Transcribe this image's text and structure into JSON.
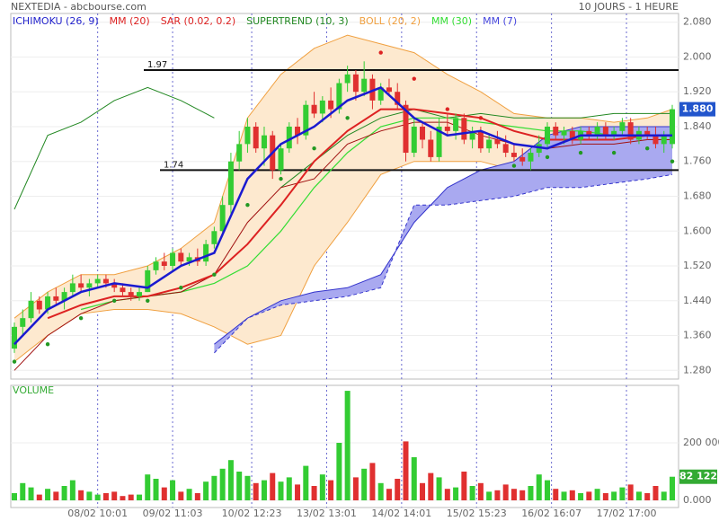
{
  "chart_data": [
    {
      "type": "candlestick",
      "title": "NEXTEDIA - abcbourse.com",
      "subtitle": "10 JOURS - 1 HEURE",
      "legend": [
        {
          "label": "ICHIMOKU (26, 9)",
          "color": "#2222cc"
        },
        {
          "label": "MM (20)",
          "color": "#dd2222"
        },
        {
          "label": "SAR (0.02, 0.2)",
          "color": "#dd2222"
        },
        {
          "label": "SUPERTREND (10, 3)",
          "color": "#228822"
        },
        {
          "label": "BOLL (20, 2)",
          "color": "#f0a040"
        },
        {
          "label": "MM (30)",
          "color": "#33dd33"
        },
        {
          "label": "MM (7)",
          "color": "#4444dd"
        }
      ],
      "ylim": [
        1.26,
        2.1
      ],
      "yticks": [
        {
          "value": 1.28,
          "label": "1.280"
        },
        {
          "value": 1.36,
          "label": "1.360"
        },
        {
          "value": 1.44,
          "label": "1.440"
        },
        {
          "value": 1.52,
          "label": "1.520"
        },
        {
          "value": 1.6,
          "label": "1.600"
        },
        {
          "value": 1.68,
          "label": "1.680"
        },
        {
          "value": 1.76,
          "label": "1.760"
        },
        {
          "value": 1.84,
          "label": "1.840"
        },
        {
          "value": 1.92,
          "label": "1.920"
        },
        {
          "value": 2.0,
          "label": "2.000"
        },
        {
          "value": 2.08,
          "label": "2.080"
        }
      ],
      "xticks": [
        {
          "value": 10,
          "label": "08/02 10:01"
        },
        {
          "value": 19,
          "label": "09/02 11:03"
        },
        {
          "value": 28.5,
          "label": "10/02 12:23"
        },
        {
          "value": 37.5,
          "label": "13/02 13:01"
        },
        {
          "value": 46.5,
          "label": "14/02 14:01"
        },
        {
          "value": 55.5,
          "label": "15/02 15:23"
        },
        {
          "value": 64.5,
          "label": "16/02 16:07"
        },
        {
          "value": 73.5,
          "label": "17/02 17:00"
        }
      ],
      "up_color": "#33cc33",
      "down_color": "#e03030",
      "ohlc": [
        [
          1.33,
          1.39,
          1.32,
          1.38
        ],
        [
          1.38,
          1.42,
          1.36,
          1.4
        ],
        [
          1.4,
          1.46,
          1.39,
          1.44
        ],
        [
          1.44,
          1.45,
          1.41,
          1.42
        ],
        [
          1.42,
          1.46,
          1.41,
          1.45
        ],
        [
          1.45,
          1.47,
          1.43,
          1.44
        ],
        [
          1.44,
          1.47,
          1.42,
          1.46
        ],
        [
          1.46,
          1.5,
          1.45,
          1.48
        ],
        [
          1.48,
          1.5,
          1.46,
          1.47
        ],
        [
          1.47,
          1.49,
          1.45,
          1.48
        ],
        [
          1.48,
          1.5,
          1.47,
          1.49
        ],
        [
          1.49,
          1.5,
          1.47,
          1.48
        ],
        [
          1.48,
          1.49,
          1.46,
          1.47
        ],
        [
          1.47,
          1.48,
          1.45,
          1.46
        ],
        [
          1.46,
          1.47,
          1.44,
          1.45
        ],
        [
          1.45,
          1.47,
          1.44,
          1.46
        ],
        [
          1.46,
          1.52,
          1.46,
          1.51
        ],
        [
          1.51,
          1.54,
          1.5,
          1.53
        ],
        [
          1.53,
          1.55,
          1.51,
          1.52
        ],
        [
          1.52,
          1.56,
          1.51,
          1.55
        ],
        [
          1.55,
          1.56,
          1.52,
          1.53
        ],
        [
          1.53,
          1.55,
          1.52,
          1.54
        ],
        [
          1.54,
          1.56,
          1.52,
          1.53
        ],
        [
          1.53,
          1.58,
          1.52,
          1.57
        ],
        [
          1.57,
          1.61,
          1.56,
          1.6
        ],
        [
          1.6,
          1.68,
          1.59,
          1.66
        ],
        [
          1.66,
          1.78,
          1.64,
          1.76
        ],
        [
          1.76,
          1.83,
          1.74,
          1.8
        ],
        [
          1.8,
          1.86,
          1.78,
          1.84
        ],
        [
          1.84,
          1.85,
          1.78,
          1.79
        ],
        [
          1.79,
          1.84,
          1.75,
          1.82
        ],
        [
          1.82,
          1.83,
          1.72,
          1.74
        ],
        [
          1.74,
          1.8,
          1.73,
          1.79
        ],
        [
          1.79,
          1.85,
          1.78,
          1.84
        ],
        [
          1.84,
          1.86,
          1.8,
          1.82
        ],
        [
          1.82,
          1.9,
          1.81,
          1.89
        ],
        [
          1.89,
          1.92,
          1.86,
          1.87
        ],
        [
          1.87,
          1.91,
          1.85,
          1.9
        ],
        [
          1.9,
          1.93,
          1.86,
          1.88
        ],
        [
          1.88,
          1.95,
          1.87,
          1.94
        ],
        [
          1.94,
          1.98,
          1.92,
          1.96
        ],
        [
          1.96,
          1.97,
          1.9,
          1.92
        ],
        [
          1.92,
          1.99,
          1.91,
          1.95
        ],
        [
          1.95,
          1.96,
          1.88,
          1.9
        ],
        [
          1.9,
          1.94,
          1.89,
          1.93
        ],
        [
          1.93,
          1.95,
          1.91,
          1.92
        ],
        [
          1.92,
          1.94,
          1.88,
          1.89
        ],
        [
          1.89,
          1.9,
          1.76,
          1.78
        ],
        [
          1.78,
          1.86,
          1.77,
          1.84
        ],
        [
          1.84,
          1.85,
          1.79,
          1.81
        ],
        [
          1.81,
          1.83,
          1.76,
          1.77
        ],
        [
          1.77,
          1.86,
          1.76,
          1.84
        ],
        [
          1.84,
          1.87,
          1.82,
          1.83
        ],
        [
          1.83,
          1.87,
          1.81,
          1.86
        ],
        [
          1.86,
          1.87,
          1.8,
          1.81
        ],
        [
          1.81,
          1.84,
          1.79,
          1.83
        ],
        [
          1.83,
          1.84,
          1.78,
          1.79
        ],
        [
          1.79,
          1.82,
          1.78,
          1.81
        ],
        [
          1.81,
          1.83,
          1.79,
          1.8
        ],
        [
          1.8,
          1.82,
          1.77,
          1.78
        ],
        [
          1.78,
          1.8,
          1.76,
          1.77
        ],
        [
          1.77,
          1.79,
          1.75,
          1.76
        ],
        [
          1.76,
          1.79,
          1.74,
          1.78
        ],
        [
          1.78,
          1.82,
          1.77,
          1.8
        ],
        [
          1.8,
          1.85,
          1.79,
          1.84
        ],
        [
          1.84,
          1.85,
          1.81,
          1.82
        ],
        [
          1.82,
          1.84,
          1.8,
          1.83
        ],
        [
          1.83,
          1.84,
          1.8,
          1.81
        ],
        [
          1.81,
          1.84,
          1.8,
          1.83
        ],
        [
          1.83,
          1.84,
          1.81,
          1.82
        ],
        [
          1.82,
          1.85,
          1.81,
          1.84
        ],
        [
          1.84,
          1.85,
          1.81,
          1.82
        ],
        [
          1.82,
          1.84,
          1.81,
          1.83
        ],
        [
          1.83,
          1.86,
          1.82,
          1.85
        ],
        [
          1.85,
          1.86,
          1.8,
          1.81
        ],
        [
          1.81,
          1.84,
          1.8,
          1.83
        ],
        [
          1.83,
          1.84,
          1.81,
          1.82
        ],
        [
          1.82,
          1.84,
          1.79,
          1.8
        ],
        [
          1.8,
          1.83,
          1.78,
          1.82
        ],
        [
          1.8,
          1.89,
          1.79,
          1.88
        ]
      ],
      "last_value_label": "1.880",
      "hlines": [
        {
          "value": 1.97,
          "label": "1.97"
        },
        {
          "value": 1.74,
          "label": "1.74"
        }
      ],
      "overlays": {
        "x": [
          0,
          4,
          8,
          12,
          16,
          20,
          24,
          28,
          32,
          36,
          40,
          44,
          48,
          52,
          56,
          60,
          64,
          68,
          72,
          76,
          79
        ],
        "bollinger": {
          "color": "#f0a040",
          "upper": [
            1.4,
            1.46,
            1.5,
            1.5,
            1.52,
            1.56,
            1.62,
            1.86,
            1.96,
            2.02,
            2.05,
            2.03,
            2.01,
            1.96,
            1.92,
            1.87,
            1.86,
            1.86,
            1.85,
            1.86,
            1.88
          ],
          "lower": [
            1.3,
            1.36,
            1.41,
            1.42,
            1.42,
            1.41,
            1.38,
            1.34,
            1.36,
            1.52,
            1.62,
            1.73,
            1.76,
            1.76,
            1.76,
            1.74,
            1.74,
            1.76,
            1.78,
            1.78,
            1.77
          ]
        },
        "ichimoku": {
          "color": "#3333cc",
          "kijun_color": "#a01010",
          "span_a": [
            null,
            null,
            null,
            null,
            null,
            null,
            1.34,
            1.4,
            1.44,
            1.46,
            1.47,
            1.5,
            1.62,
            1.7,
            1.74,
            1.76,
            1.82,
            1.84,
            1.84,
            1.84,
            1.84
          ],
          "span_b": [
            null,
            null,
            null,
            null,
            null,
            null,
            1.32,
            1.4,
            1.43,
            1.44,
            1.45,
            1.47,
            1.66,
            1.66,
            1.67,
            1.68,
            1.7,
            1.7,
            1.71,
            1.72,
            1.73
          ],
          "kijun": [
            1.28,
            1.36,
            1.41,
            1.44,
            1.45,
            1.46,
            1.5,
            1.62,
            1.7,
            1.72,
            1.8,
            1.83,
            1.85,
            1.85,
            1.82,
            1.8,
            1.79,
            1.8,
            1.8,
            1.81,
            1.81
          ]
        },
        "supertrend": {
          "color": "#228822",
          "values": [
            1.65,
            1.82,
            1.85,
            1.9,
            1.93,
            1.9,
            1.86,
            null,
            1.7,
            1.76,
            1.82,
            1.86,
            1.88,
            1.86,
            1.87,
            1.86,
            1.86,
            1.86,
            1.87,
            1.87,
            1.87
          ]
        },
        "mm30": {
          "color": "#33dd33",
          "values": [
            null,
            null,
            1.42,
            1.44,
            1.45,
            1.46,
            1.48,
            1.52,
            1.6,
            1.7,
            1.78,
            1.84,
            1.86,
            1.86,
            1.85,
            1.84,
            1.83,
            1.83,
            1.82,
            1.82,
            1.82
          ]
        },
        "mm20": {
          "color": "#dd2222",
          "values": [
            null,
            1.4,
            1.43,
            1.45,
            1.45,
            1.47,
            1.5,
            1.57,
            1.66,
            1.76,
            1.83,
            1.88,
            1.88,
            1.87,
            1.86,
            1.83,
            1.81,
            1.81,
            1.81,
            1.82,
            1.82
          ]
        },
        "mm7": {
          "color": "#1a1ad0",
          "values": [
            1.34,
            1.42,
            1.46,
            1.48,
            1.47,
            1.52,
            1.55,
            1.72,
            1.8,
            1.84,
            1.9,
            1.93,
            1.86,
            1.82,
            1.83,
            1.8,
            1.79,
            1.82,
            1.82,
            1.82,
            1.82
          ]
        },
        "sar": {
          "up_color": "#229922",
          "down_color": "#dd2222",
          "values": [
            1.3,
            1.34,
            1.4,
            1.44,
            1.44,
            1.47,
            1.5,
            1.66,
            1.72,
            1.79,
            1.86,
            2.01,
            1.95,
            1.88,
            1.86,
            1.75,
            1.77,
            1.78,
            1.78,
            1.79,
            1.76
          ]
        }
      }
    },
    {
      "type": "bar",
      "title": "VOLUME",
      "ylim": [
        -25000,
        400000
      ],
      "yticks": [
        {
          "value": 0,
          "label": "0.000"
        },
        {
          "value": 200000,
          "label": "200 000"
        }
      ],
      "values": [
        25000,
        60000,
        45000,
        20000,
        40000,
        30000,
        50000,
        70000,
        35000,
        30000,
        20000,
        25000,
        30000,
        15000,
        20000,
        20000,
        90000,
        75000,
        45000,
        70000,
        30000,
        40000,
        25000,
        65000,
        85000,
        110000,
        140000,
        100000,
        85000,
        60000,
        70000,
        95000,
        65000,
        80000,
        55000,
        120000,
        50000,
        90000,
        70000,
        200000,
        381000,
        80000,
        110000,
        130000,
        60000,
        40000,
        75000,
        205000,
        150000,
        60000,
        95000,
        80000,
        40000,
        45000,
        100000,
        50000,
        60000,
        30000,
        35000,
        55000,
        40000,
        35000,
        50000,
        90000,
        70000,
        40000,
        30000,
        35000,
        25000,
        30000,
        40000,
        25000,
        30000,
        45000,
        55000,
        30000,
        25000,
        50000,
        30000,
        82122
      ],
      "last_value_label": "82 122"
    }
  ]
}
